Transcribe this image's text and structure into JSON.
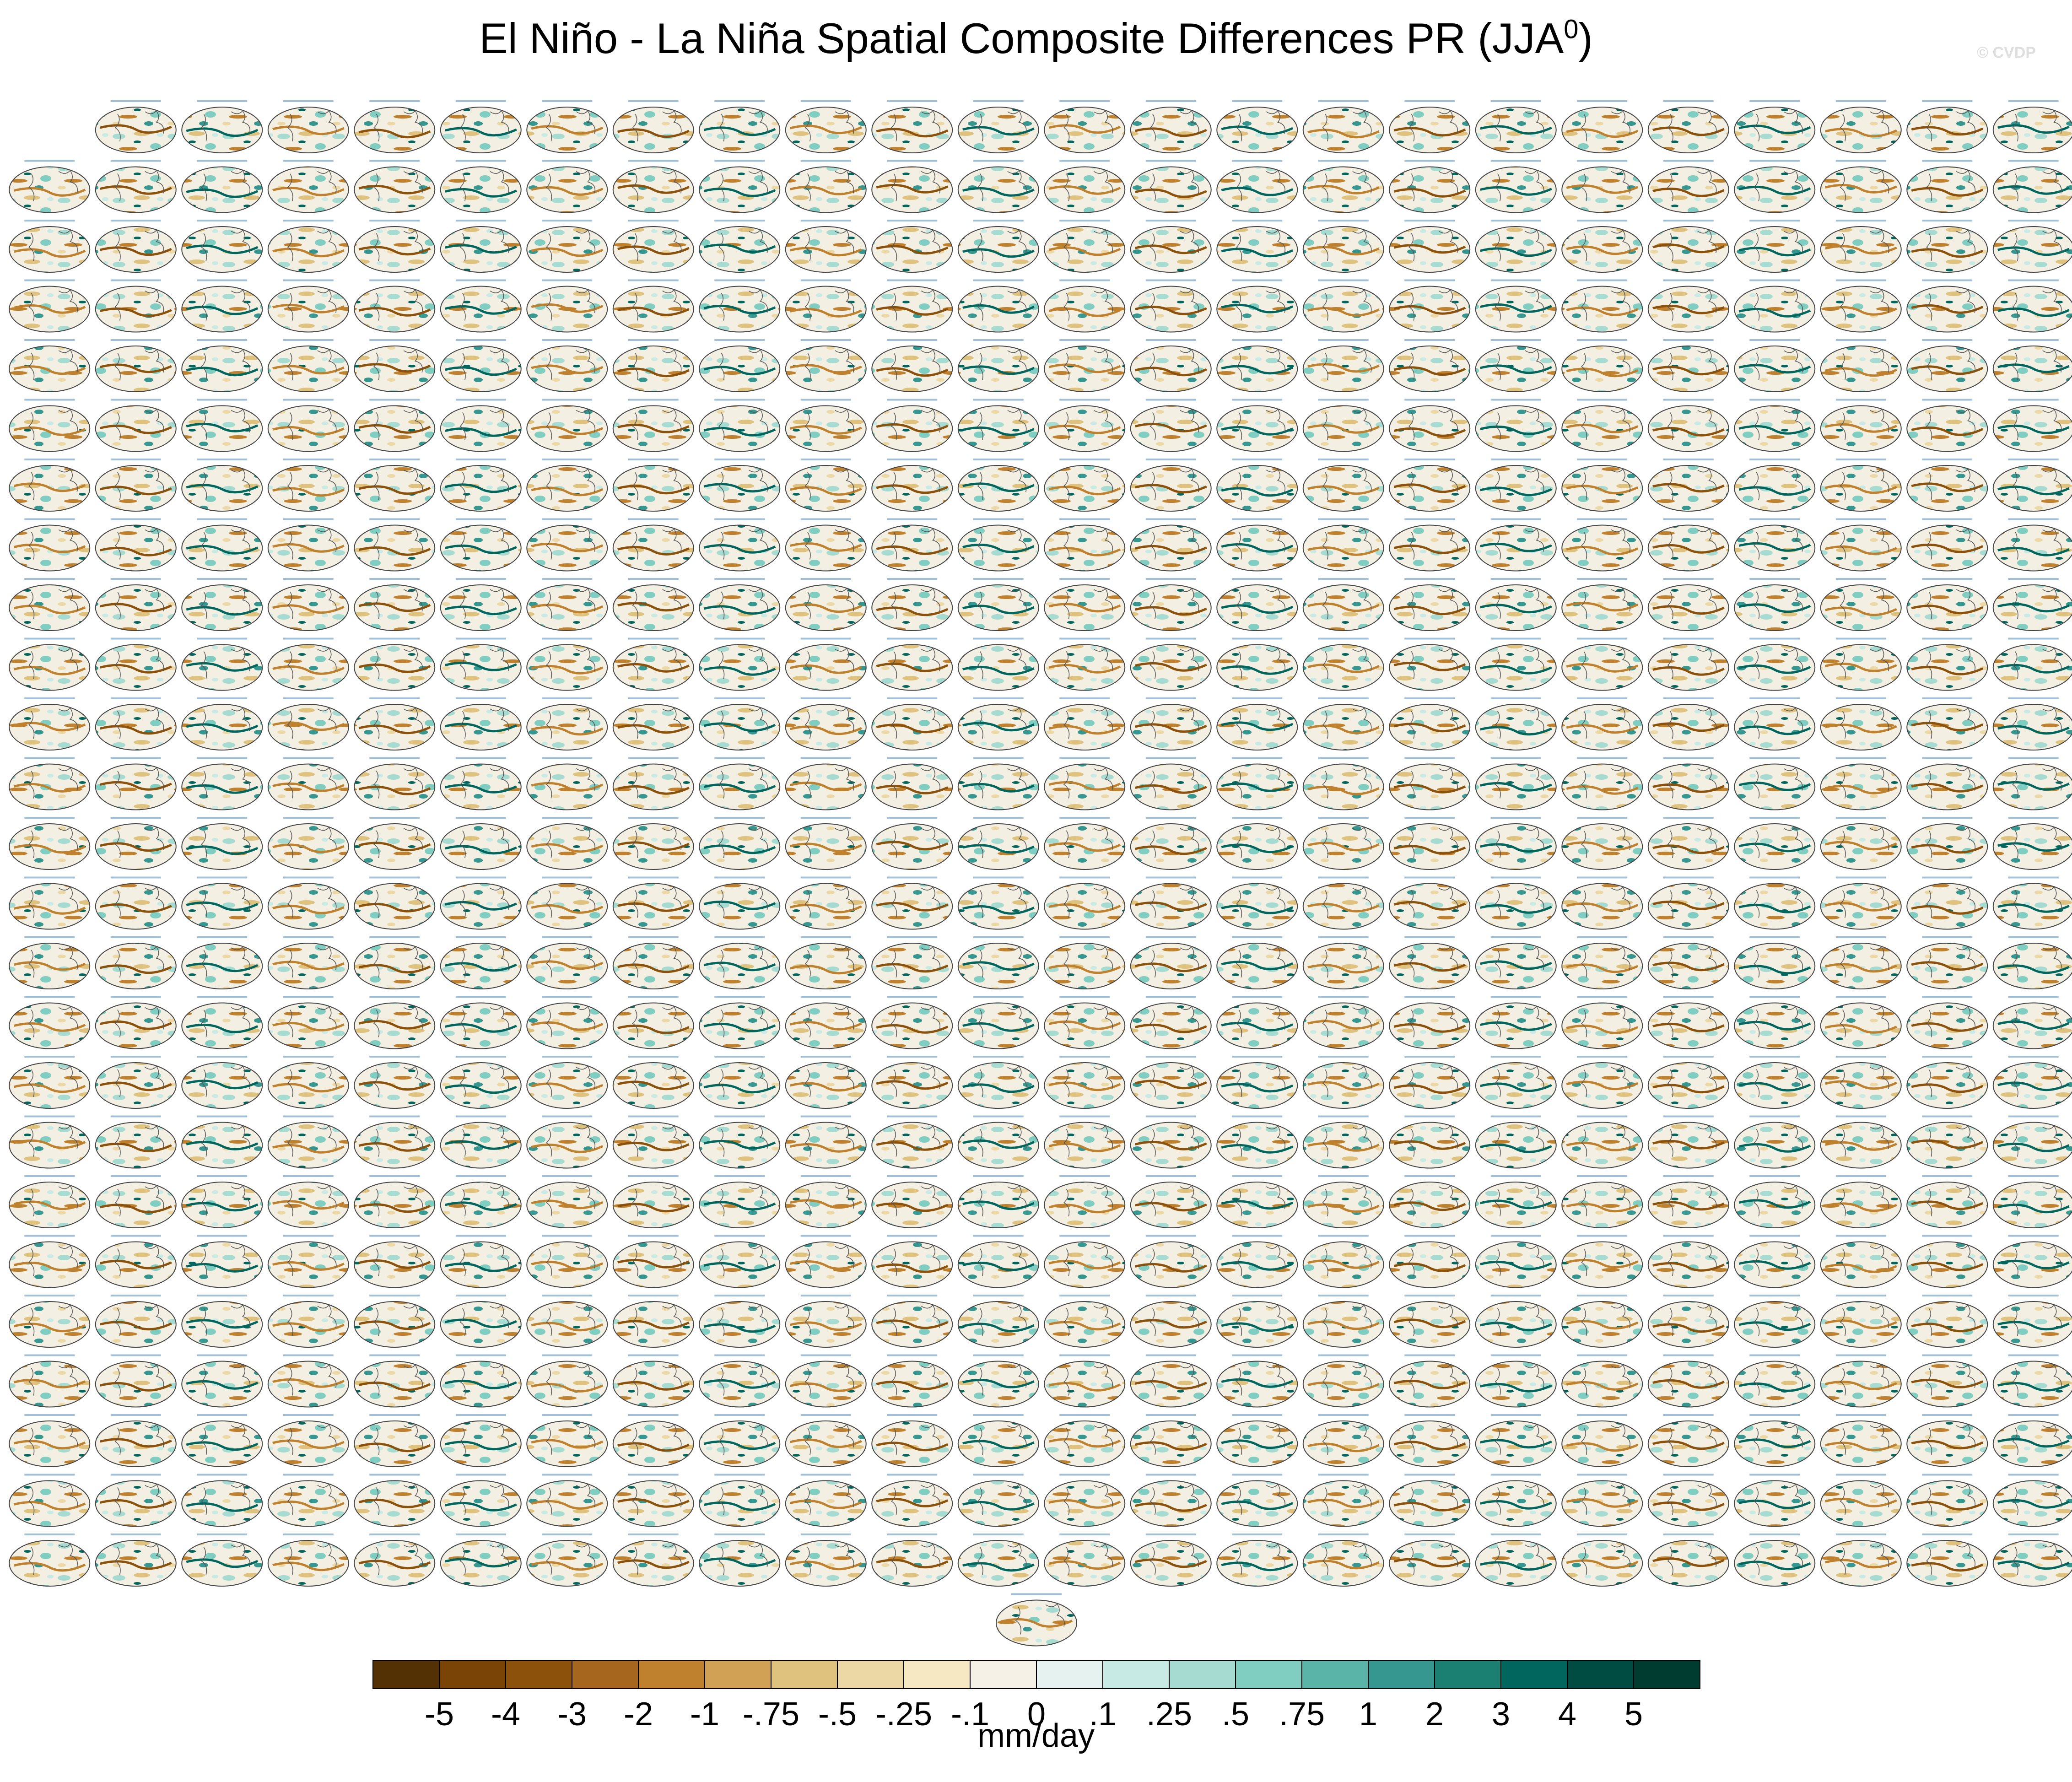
{
  "title": "El Niño - La Niña Spatial Composite Differences PR (JJA",
  "title_superscript": "0",
  "title_close": ")",
  "copyright": "© CVDP",
  "chart_data": {
    "type": "heatmap",
    "panel_grid": {
      "rows": 26,
      "columns": 24,
      "first_row_panels": 23,
      "extra_row_panels": 1,
      "total_panels": 624
    },
    "panel_type": "global map, elliptical projection",
    "colorbar": {
      "labels": [
        "-5",
        "-4",
        "-3",
        "-2",
        "-1",
        "-.75",
        "-.5",
        "-.25",
        "-.1",
        "0",
        ".1",
        ".25",
        ".5",
        ".75",
        "1",
        "2",
        "3",
        "4",
        "5"
      ],
      "colors": [
        "#543005",
        "#7a4406",
        "#8c510a",
        "#a6661d",
        "#bf812d",
        "#d1a155",
        "#dfc27d",
        "#ecd8a5",
        "#f6e8c3",
        "#f5f1e6",
        "#e6f2ef",
        "#c7eae5",
        "#a6dbd1",
        "#80cdc1",
        "#5ab4a8",
        "#35978f",
        "#1b7f72",
        "#01665e",
        "#004c43",
        "#003c30"
      ],
      "unit": "mm/day"
    }
  }
}
